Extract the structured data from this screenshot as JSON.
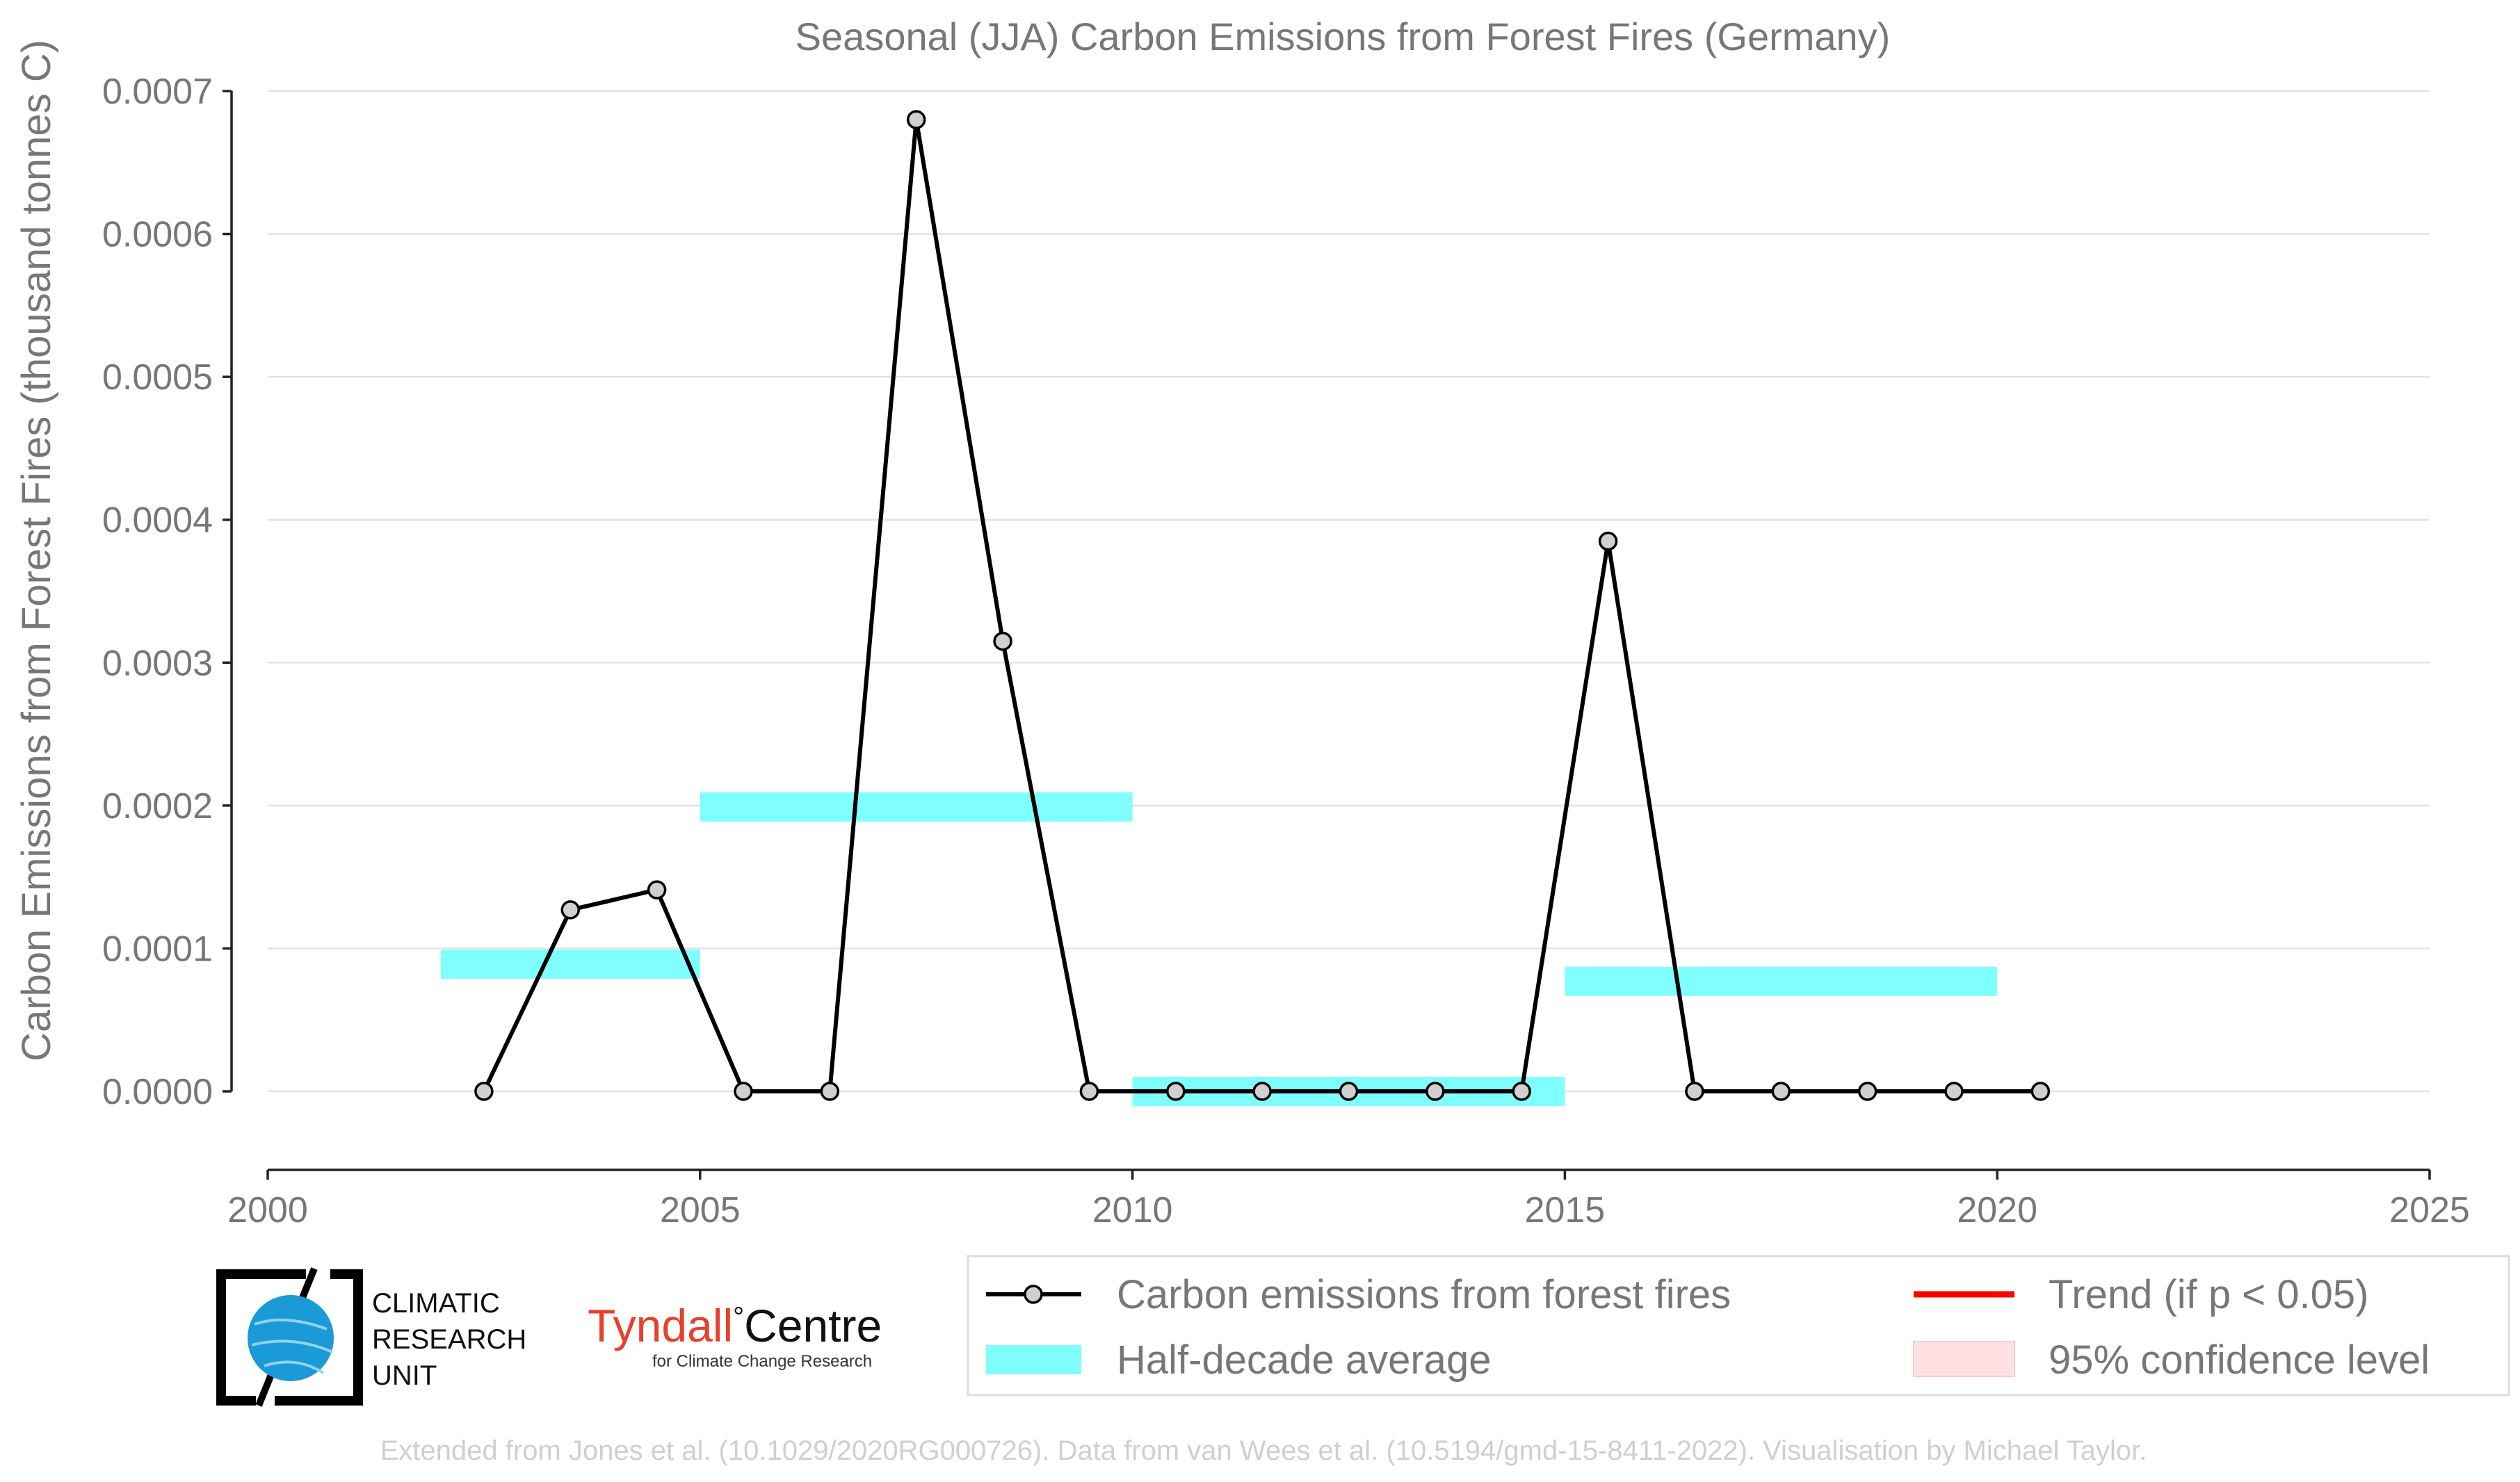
{
  "chart_data": {
    "type": "line",
    "title": "Seasonal (JJA) Carbon Emissions from Forest Fires (Germany)",
    "xlabel": "",
    "ylabel": "Carbon Emissions from Forest Fires (thousand tonnes C)",
    "xlim": [
      2000,
      2025
    ],
    "ylim": [
      -5e-05,
      0.0007
    ],
    "x_ticks": [
      "2000",
      "2005",
      "2010",
      "2015",
      "2020",
      "2025"
    ],
    "y_ticks": [
      "0.0000",
      "0.0001",
      "0.0002",
      "0.0003",
      "0.0004",
      "0.0005",
      "0.0006",
      "0.0007"
    ],
    "grid": "horizontal",
    "series": [
      {
        "name": "Carbon emissions from forest fires",
        "color": "#000000",
        "marker_color": "#d0d0d0",
        "x": [
          2002.5,
          2003.5,
          2004.5,
          2005.5,
          2006.5,
          2007.5,
          2008.5,
          2009.5,
          2010.5,
          2011.5,
          2012.5,
          2013.5,
          2014.5,
          2015.5,
          2016.5,
          2017.5,
          2018.5,
          2019.5,
          2020.5
        ],
        "y": [
          0.0,
          0.000127,
          0.000141,
          0.0,
          0.0,
          0.00068,
          0.000315,
          0.0,
          0.0,
          0.0,
          0.0,
          0.0,
          0.0,
          0.000385,
          0.0,
          0.0,
          0.0,
          0.0,
          0.0
        ]
      }
    ],
    "half_decade_average": {
      "name": "Half-decade average",
      "color": "#80ffff",
      "segments": [
        {
          "x_start": 2002,
          "x_end": 2005,
          "y": 8.9e-05
        },
        {
          "x_start": 2005,
          "x_end": 2010,
          "y": 0.000199
        },
        {
          "x_start": 2010,
          "x_end": 2015,
          "y": 0.0
        },
        {
          "x_start": 2015,
          "x_end": 2020,
          "y": 7.7e-05
        }
      ]
    },
    "legend": {
      "placement": "bottom-right",
      "entries": [
        {
          "label": "Carbon emissions from forest fires",
          "kind": "line-marker",
          "color": "#000000"
        },
        {
          "label": "Half-decade average",
          "kind": "band",
          "color": "#80ffff"
        },
        {
          "label": "Trend (if p < 0.05)",
          "kind": "line",
          "color": "#ff0000"
        },
        {
          "label": "95% confidence level",
          "kind": "patch",
          "color": "#ffe0e3"
        }
      ]
    }
  },
  "logos": {
    "cru": [
      "CLIMATIC",
      "RESEARCH",
      "UNIT"
    ],
    "tyndall_main": "Tyndall",
    "tyndall_degree": "°",
    "tyndall_centre": "Centre",
    "tyndall_sub": "for Climate Change Research"
  },
  "footer": "Extended from Jones et al. (10.1029/2020RG000726). Data from van Wees et al. (10.5194/gmd-15-8411-2022). Visualisation by Michael Taylor."
}
